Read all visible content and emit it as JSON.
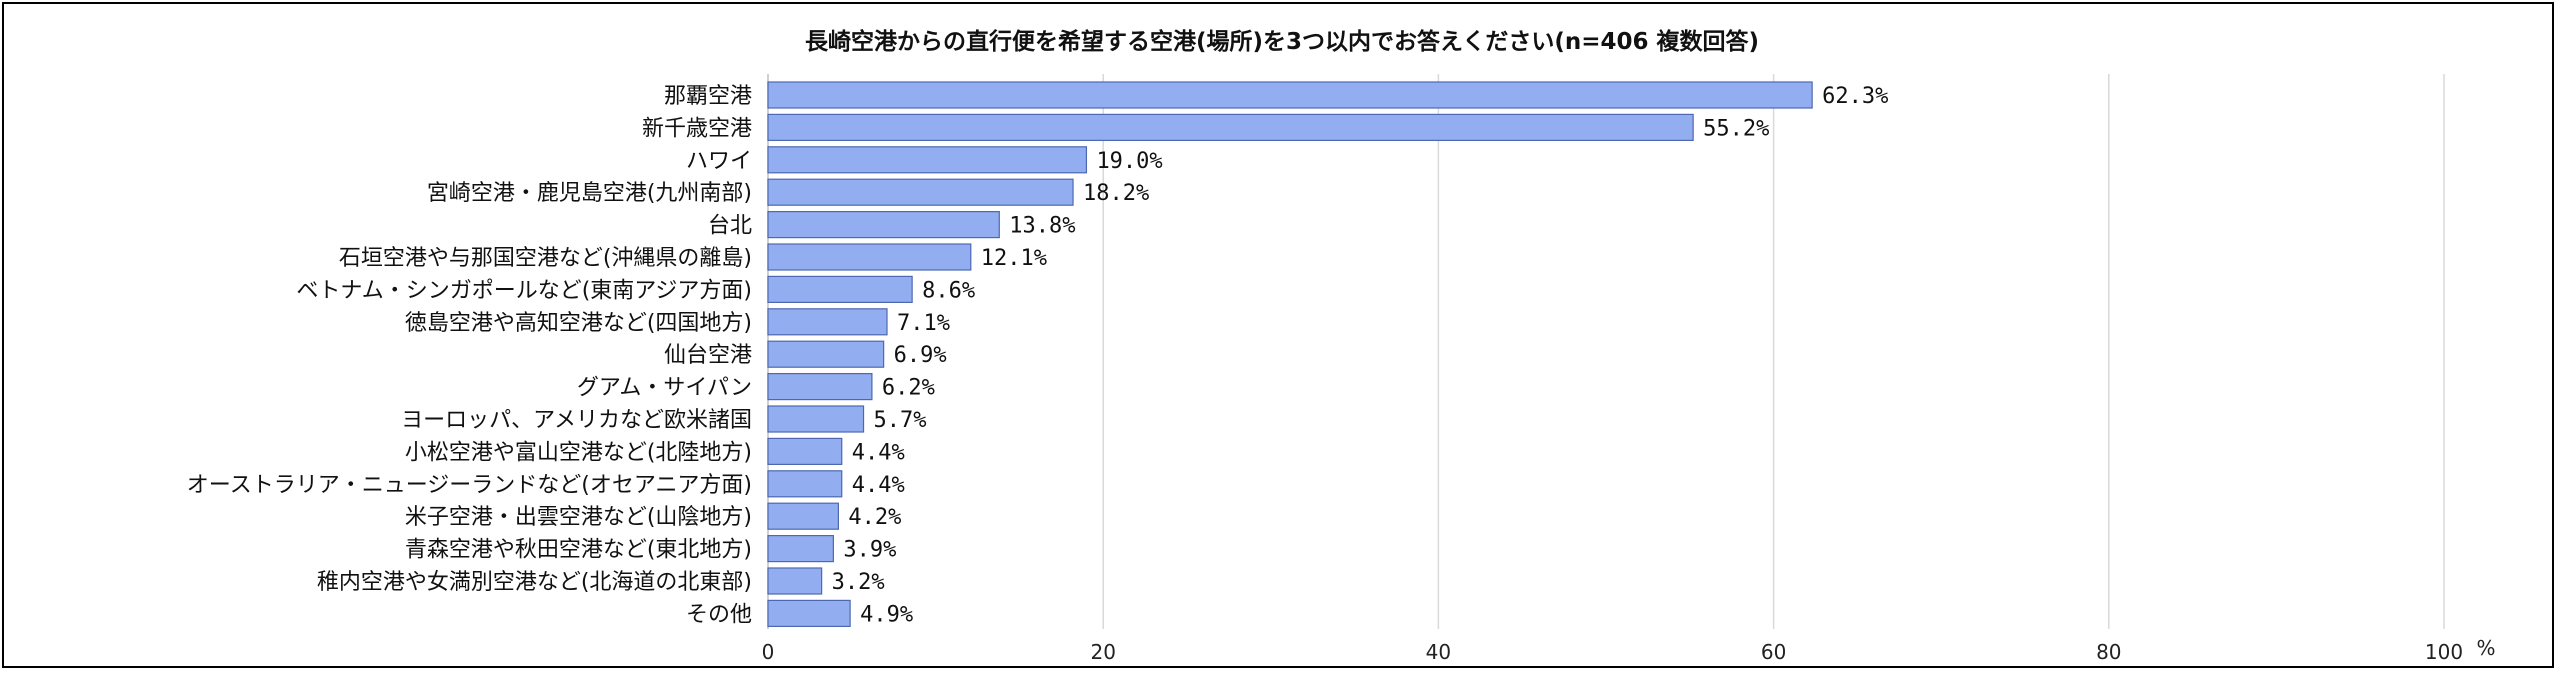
{
  "chart_data": {
    "type": "bar",
    "orientation": "horizontal",
    "title": "長崎空港からの直行便を希望する空港(場所)を3つ以内でお答えください(n=406 複数回答)",
    "categories": [
      "那覇空港",
      "新千歳空港",
      "ハワイ",
      "宮崎空港・鹿児島空港(九州南部)",
      "台北",
      "石垣空港や与那国空港など(沖縄県の離島)",
      "ベトナム・シンガポールなど(東南アジア方面)",
      "徳島空港や高知空港など(四国地方)",
      "仙台空港",
      "グアム・サイパン",
      "ヨーロッパ、アメリカなど欧米諸国",
      "小松空港や富山空港など(北陸地方)",
      "オーストラリア・ニュージーランドなど(オセアニア方面)",
      "米子空港・出雲空港など(山陰地方)",
      "青森空港や秋田空港など(東北地方)",
      "稚内空港や女満別空港など(北海道の北東部)",
      "その他"
    ],
    "values": [
      62.3,
      55.2,
      19.0,
      18.2,
      13.8,
      12.1,
      8.6,
      7.1,
      6.9,
      6.2,
      5.7,
      4.4,
      4.4,
      4.2,
      3.9,
      3.2,
      4.9
    ],
    "value_labels": [
      "62.3%",
      "55.2%",
      "19.0%",
      "18.2%",
      "13.8%",
      "12.1%",
      "8.6%",
      "7.1%",
      "6.9%",
      "6.2%",
      "5.7%",
      "4.4%",
      "4.4%",
      "4.2%",
      "3.9%",
      "3.2%",
      "4.9%"
    ],
    "xlim": [
      0,
      100
    ],
    "xticks": [
      0,
      20,
      40,
      60,
      80,
      100
    ],
    "xunit": "%",
    "grid": "vertical",
    "legend": "none",
    "colors": {
      "bar_fill": "#92adf0",
      "bar_stroke": "#4d68b0",
      "grid": "#d9d9d9",
      "axis": "#bfbfbf"
    }
  }
}
